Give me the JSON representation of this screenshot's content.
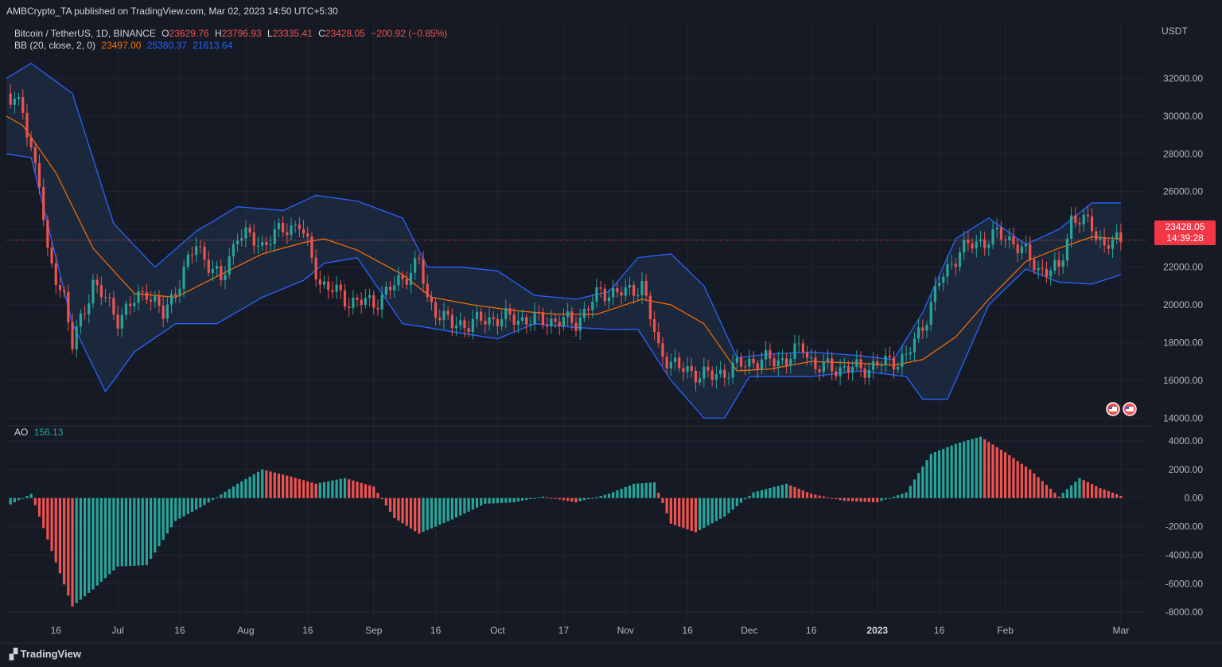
{
  "header": {
    "text": "AMBCrypto_TA published on TradingView.com, Mar 02, 2023 14:50 UTC+5:30"
  },
  "symbol_legend": {
    "name": "Bitcoin / TetherUS, 1D, BINANCE",
    "open_label": "O",
    "open": "23629.76",
    "high_label": "H",
    "high": "23796.93",
    "low_label": "L",
    "low": "23335.41",
    "close_label": "C",
    "close": "23428.05",
    "change": "−200.92 (−0.85%)"
  },
  "bb_legend": {
    "name": "BB (20, close, 2, 0)",
    "basis": "23497.00",
    "upper": "25380.37",
    "lower": "21613.64"
  },
  "ao_legend": {
    "name": "AO",
    "value": "156.13"
  },
  "price_tag": {
    "price": "23428.05",
    "countdown": "14:39:28"
  },
  "currency": "USDT",
  "watermark": "TradingView",
  "colors": {
    "background": "#161a25",
    "grid": "#232632",
    "up": "#26a69a",
    "down": "#ef5350",
    "bb_upper": "#2962ff",
    "bb_lower": "#2962ff",
    "bb_basis": "#ff6d00",
    "bb_fill": "#1c2a3e",
    "text": "#b2b5be",
    "price_tag": "#f23645"
  },
  "chart_data": [
    {
      "type": "line",
      "title": "Bitcoin / TetherUS, 1D, BINANCE",
      "ylabel": "USDT",
      "ylim": [
        13800,
        33200
      ],
      "y_ticks": [
        "32000.00",
        "30000.00",
        "28000.00",
        "26000.00",
        "24000.00",
        "22000.00",
        "20000.00",
        "18000.00",
        "16000.00",
        "14000.00"
      ],
      "x_ticks": [
        "16",
        "Jul",
        "16",
        "Aug",
        "16",
        "Sep",
        "16",
        "Oct",
        "17",
        "Nov",
        "16",
        "Dec",
        "16",
        "2023",
        "16",
        "Feb",
        "Mar"
      ],
      "x_tick_dates": [
        "2022-06-16",
        "2022-07-01",
        "2022-07-16",
        "2022-08-01",
        "2022-08-16",
        "2022-09-01",
        "2022-09-16",
        "2022-10-01",
        "2022-10-17",
        "2022-11-01",
        "2022-11-16",
        "2022-12-01",
        "2022-12-16",
        "2023-01-01",
        "2023-01-16",
        "2023-02-01",
        "2023-03-01"
      ],
      "x_range": [
        "2022-06-04",
        "2023-03-07"
      ],
      "grid": true,
      "series": [
        {
          "name": "BB Upper",
          "x": [
            "2022-06-04",
            "2022-06-10",
            "2022-06-20",
            "2022-06-30",
            "2022-07-10",
            "2022-07-20",
            "2022-07-30",
            "2022-08-10",
            "2022-08-18",
            "2022-08-28",
            "2022-09-08",
            "2022-09-14",
            "2022-09-22",
            "2022-10-01",
            "2022-10-10",
            "2022-10-20",
            "2022-10-28",
            "2022-11-04",
            "2022-11-12",
            "2022-11-20",
            "2022-11-28",
            "2022-12-06",
            "2022-12-16",
            "2022-12-28",
            "2023-01-05",
            "2023-01-12",
            "2023-01-20",
            "2023-01-28",
            "2023-02-06",
            "2023-02-14",
            "2023-02-22",
            "2023-03-01"
          ],
          "values": [
            32000,
            32800,
            31200,
            24300,
            22000,
            23900,
            25200,
            25000,
            25800,
            25500,
            24600,
            22000,
            22000,
            21800,
            20500,
            20300,
            20700,
            22500,
            22700,
            21000,
            17200,
            17400,
            17500,
            17300,
            17100,
            19600,
            23500,
            24600,
            23200,
            24000,
            25400,
            25400
          ]
        },
        {
          "name": "BB Basis",
          "x": [
            "2022-06-04",
            "2022-06-08",
            "2022-06-16",
            "2022-06-25",
            "2022-07-05",
            "2022-07-15",
            "2022-07-25",
            "2022-08-05",
            "2022-08-15",
            "2022-08-20",
            "2022-08-28",
            "2022-09-08",
            "2022-09-15",
            "2022-09-25",
            "2022-10-05",
            "2022-10-15",
            "2022-10-25",
            "2022-11-05",
            "2022-11-12",
            "2022-11-20",
            "2022-11-28",
            "2022-12-06",
            "2022-12-16",
            "2022-12-28",
            "2023-01-05",
            "2023-01-12",
            "2023-01-20",
            "2023-01-28",
            "2023-02-06",
            "2023-02-14",
            "2023-02-22",
            "2023-03-01"
          ],
          "values": [
            30000,
            29500,
            27000,
            23000,
            20600,
            20400,
            21500,
            22700,
            23300,
            23500,
            22900,
            21600,
            20400,
            20000,
            19700,
            19500,
            19500,
            20300,
            20000,
            19000,
            16500,
            16600,
            17000,
            16900,
            16800,
            17100,
            18300,
            20300,
            22300,
            23000,
            23600,
            23500
          ]
        },
        {
          "name": "BB Lower",
          "x": [
            "2022-06-04",
            "2022-06-10",
            "2022-06-20",
            "2022-06-28",
            "2022-07-05",
            "2022-07-15",
            "2022-07-25",
            "2022-08-05",
            "2022-08-15",
            "2022-08-20",
            "2022-08-28",
            "2022-09-08",
            "2022-09-14",
            "2022-09-22",
            "2022-10-01",
            "2022-10-10",
            "2022-10-20",
            "2022-10-28",
            "2022-11-04",
            "2022-11-12",
            "2022-11-20",
            "2022-11-25",
            "2022-12-01",
            "2022-12-16",
            "2022-12-28",
            "2023-01-08",
            "2023-01-12",
            "2023-01-18",
            "2023-01-28",
            "2023-02-06",
            "2023-02-14",
            "2023-02-22",
            "2023-03-01"
          ],
          "values": [
            28000,
            27800,
            19000,
            15400,
            17500,
            19000,
            19000,
            20400,
            21300,
            22200,
            22500,
            19000,
            18800,
            18500,
            18200,
            19000,
            18800,
            18700,
            18700,
            16000,
            14000,
            14000,
            16200,
            16200,
            16500,
            16200,
            15000,
            15000,
            20000,
            21900,
            21200,
            21100,
            21600
          ]
        },
        {
          "name": "BTCUSDT close (approx.)",
          "x": [
            "2022-06-04",
            "2022-06-08",
            "2022-06-12",
            "2022-06-14",
            "2022-06-18",
            "2022-06-20",
            "2022-06-25",
            "2022-07-01",
            "2022-07-08",
            "2022-07-12",
            "2022-07-20",
            "2022-07-26",
            "2022-07-30",
            "2022-08-05",
            "2022-08-10",
            "2022-08-14",
            "2022-08-19",
            "2022-08-26",
            "2022-09-01",
            "2022-09-08",
            "2022-09-12",
            "2022-09-14",
            "2022-09-20",
            "2022-10-01",
            "2022-10-10",
            "2022-10-20",
            "2022-10-26",
            "2022-11-01",
            "2022-11-05",
            "2022-11-09",
            "2022-11-14",
            "2022-11-22",
            "2022-12-01",
            "2022-12-10",
            "2022-12-14",
            "2022-12-17",
            "2022-12-28",
            "2023-01-08",
            "2023-01-12",
            "2023-01-16",
            "2023-01-21",
            "2023-01-30",
            "2023-02-03",
            "2023-02-09",
            "2023-02-14",
            "2023-02-17",
            "2023-02-22",
            "2023-02-25",
            "2023-03-01"
          ],
          "values": [
            31200,
            30200,
            26500,
            22500,
            20500,
            17800,
            21200,
            19300,
            20800,
            19400,
            23200,
            21200,
            23800,
            23200,
            24000,
            24300,
            21200,
            20200,
            20100,
            21400,
            22300,
            20200,
            18900,
            19300,
            19200,
            19100,
            20700,
            20600,
            21100,
            17600,
            16600,
            16200,
            17000,
            17100,
            17800,
            16700,
            16600,
            17200,
            18900,
            21200,
            22900,
            23700,
            23400,
            21900,
            21800,
            24600,
            24200,
            23100,
            23428
          ]
        }
      ],
      "last_price": 23428.05
    },
    {
      "type": "bar",
      "title": "AO",
      "ylim": [
        -8600,
        4500
      ],
      "y_ticks": [
        "4000.00",
        "2000.00",
        "0.00",
        "-2000.00",
        "-4000.00",
        "-6000.00",
        "-8000.00"
      ],
      "x": [
        "2022-06-04",
        "2022-06-10",
        "2022-06-16",
        "2022-06-20",
        "2022-06-25",
        "2022-07-01",
        "2022-07-08",
        "2022-07-15",
        "2022-07-22",
        "2022-07-30",
        "2022-08-05",
        "2022-08-12",
        "2022-08-18",
        "2022-08-25",
        "2022-09-01",
        "2022-09-06",
        "2022-09-12",
        "2022-09-20",
        "2022-09-28",
        "2022-10-05",
        "2022-10-12",
        "2022-10-20",
        "2022-10-28",
        "2022-11-03",
        "2022-11-08",
        "2022-11-12",
        "2022-11-18",
        "2022-11-25",
        "2022-12-02",
        "2022-12-10",
        "2022-12-16",
        "2022-12-24",
        "2023-01-01",
        "2023-01-08",
        "2023-01-14",
        "2023-01-20",
        "2023-01-26",
        "2023-02-01",
        "2023-02-07",
        "2023-02-14",
        "2023-02-19",
        "2023-02-24",
        "2023-03-01"
      ],
      "values": [
        -600,
        300,
        -4500,
        -7600,
        -6400,
        -4800,
        -4700,
        -1600,
        -500,
        1000,
        2000,
        1500,
        1000,
        1400,
        800,
        -1400,
        -2500,
        -1500,
        -400,
        -300,
        100,
        -300,
        300,
        1000,
        1100,
        -1800,
        -2400,
        -1300,
        400,
        1000,
        300,
        -200,
        -300,
        400,
        3100,
        3800,
        4300,
        3200,
        2000,
        100,
        1400,
        700,
        156
      ]
    }
  ]
}
